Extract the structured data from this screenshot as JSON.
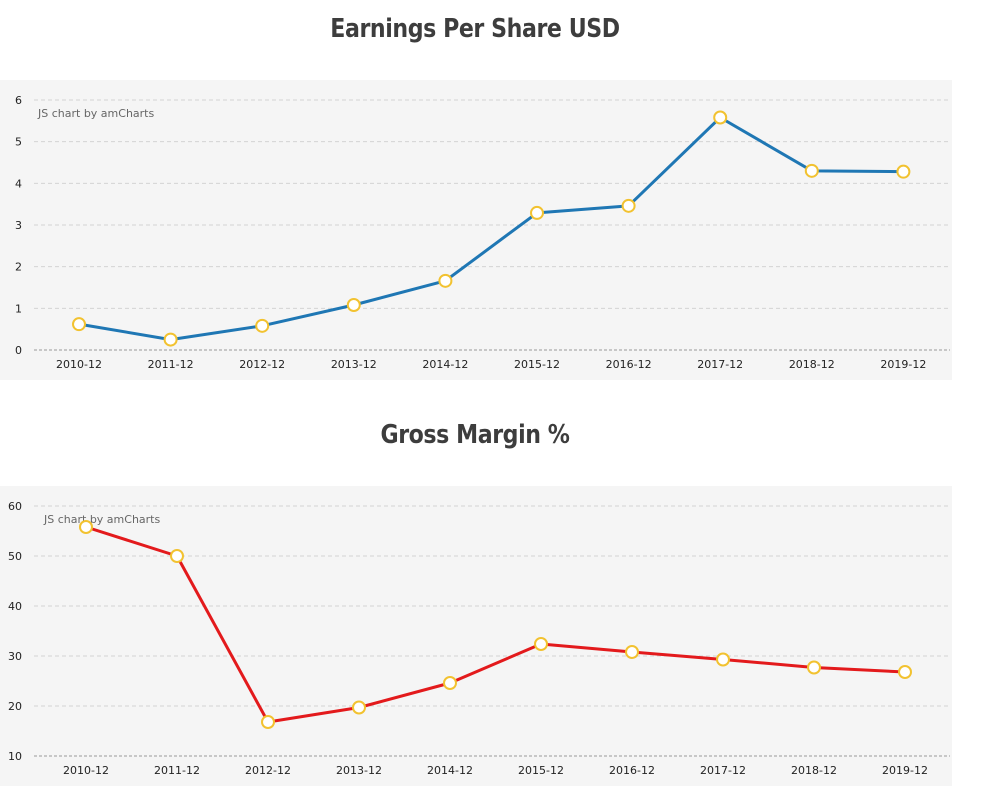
{
  "credit": "JS chart by amCharts",
  "chart_data": [
    {
      "type": "line",
      "title": "Earnings Per Share USD",
      "categories": [
        "2010-12",
        "2011-12",
        "2012-12",
        "2013-12",
        "2014-12",
        "2015-12",
        "2016-12",
        "2017-12",
        "2018-12",
        "2019-12"
      ],
      "values": [
        0.62,
        0.25,
        0.58,
        1.08,
        1.66,
        3.29,
        3.46,
        5.58,
        4.3,
        4.28
      ],
      "ylim": [
        0,
        6
      ],
      "yticks": [
        0,
        1,
        2,
        3,
        4,
        5,
        6
      ],
      "grid": true,
      "line_color": "#1f77b4",
      "marker_fill": "#ffffff",
      "marker_stroke": "#f2c230"
    },
    {
      "type": "line",
      "title": "Gross Margin %",
      "categories": [
        "2010-12",
        "2011-12",
        "2012-12",
        "2013-12",
        "2014-12",
        "2015-12",
        "2016-12",
        "2017-12",
        "2018-12",
        "2019-12"
      ],
      "values": [
        55.8,
        50.0,
        16.8,
        19.7,
        24.6,
        32.4,
        30.8,
        29.3,
        27.7,
        26.8
      ],
      "ylim": [
        10,
        60
      ],
      "yticks": [
        10,
        20,
        30,
        40,
        50,
        60
      ],
      "grid": true,
      "line_color": "#e31a1c",
      "marker_fill": "#ffffff",
      "marker_stroke": "#f2c230"
    }
  ]
}
